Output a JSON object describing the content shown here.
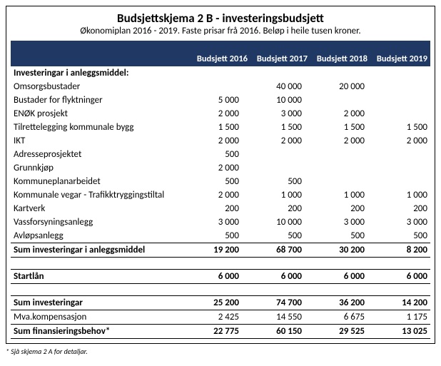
{
  "title": "Budsjettskjema 2  B - investeringsbudsjett",
  "subtitle": "Økonomiplan 2016 - 2019. Faste prisar frå 2016. Beløp i heile tusen kroner.",
  "columns": [
    "Budsjett 2016",
    "Budsjett 2017",
    "Budsjett 2018",
    "Budsjett 2019"
  ],
  "section1_label": "Investeringar i anleggsmiddel:",
  "rows": [
    {
      "label": "Omsorgsbustader",
      "v": [
        "",
        "40 000",
        "20 000",
        ""
      ]
    },
    {
      "label": "Bustader for flyktninger",
      "v": [
        "5 000",
        "10 000",
        "",
        ""
      ]
    },
    {
      "label": "ENØK prosjekt",
      "v": [
        "2 000",
        "3 000",
        "2 000",
        ""
      ]
    },
    {
      "label": "Tilrettelegging kommunale bygg",
      "v": [
        "1 500",
        "1 500",
        "1 500",
        "1 500"
      ]
    },
    {
      "label": "IKT",
      "v": [
        "2 000",
        "2 000",
        "2 000",
        "2 000"
      ]
    },
    {
      "label": "Adresseprosjektet",
      "v": [
        "500",
        "",
        "",
        ""
      ]
    },
    {
      "label": "Grunnkjøp",
      "v": [
        "2 000",
        "",
        "",
        ""
      ]
    },
    {
      "label": "Kommuneplanarbeidet",
      "v": [
        "500",
        "500",
        "",
        ""
      ]
    },
    {
      "label": "Kommunale vegar  - Trafikktryggingstiltal",
      "v": [
        "2 000",
        "1 000",
        "1 000",
        "1 000"
      ]
    },
    {
      "label": "Kartverk",
      "v": [
        "200",
        "200",
        "200",
        "200"
      ]
    },
    {
      "label": "Vassforsyningsanlegg",
      "v": [
        "3 000",
        "10 000",
        "3 000",
        "3 000"
      ]
    },
    {
      "label": "Avløpsanlegg",
      "v": [
        "500",
        "500",
        "500",
        "500"
      ]
    }
  ],
  "sum1": {
    "label": "Sum investeringar i anleggsmiddel",
    "v": [
      "19 200",
      "68 700",
      "30 200",
      "8 200"
    ]
  },
  "startlan": {
    "label": "Startlån",
    "v": [
      "6 000",
      "6 000",
      "6 000",
      "6 000"
    ]
  },
  "sum2": {
    "label": "Sum investeringar",
    "v": [
      "25 200",
      "74 700",
      "36 200",
      "14 200"
    ]
  },
  "mva": {
    "label": "Mva.kompensasjon",
    "v": [
      "2 425",
      "14 550",
      "6 675",
      "1 175"
    ]
  },
  "sum3": {
    "label": "Sum finansieringsbehov*",
    "v": [
      "22 775",
      "60 150",
      "29 525",
      "13 025"
    ]
  },
  "footnote": "* Sjå skjema 2 A for detaljar."
}
